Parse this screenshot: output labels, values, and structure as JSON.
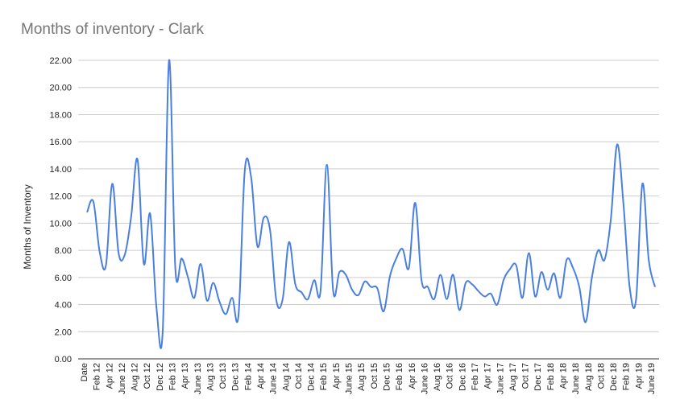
{
  "chart_data": {
    "type": "line",
    "title": "Months of inventory - Clark",
    "xlabel": "",
    "ylabel": "Months of Inventory",
    "ylim": [
      0,
      22
    ],
    "yticks": [
      "0.00",
      "2.00",
      "4.00",
      "6.00",
      "8.00",
      "10.00",
      "12.00",
      "14.00",
      "16.00",
      "18.00",
      "20.00",
      "22.00"
    ],
    "xtick_labels": [
      "Date",
      "Feb 12",
      "Apr 12",
      "June 12",
      "Aug 12",
      "Oct 12",
      "Dec 12",
      "Feb 13",
      "Apr 13",
      "June 13",
      "Aug 13",
      "Oct 13",
      "Dec 13",
      "Feb 14",
      "Apr 14",
      "June 14",
      "Aug 14",
      "Oct 14",
      "Dec 14",
      "Feb 15",
      "Apr 15",
      "June 15",
      "Aug 15",
      "Oct 15",
      "Dec 15",
      "Feb 16",
      "Apr 16",
      "June 16",
      "Aug 16",
      "Oct 16",
      "Dec 16",
      "Feb 17",
      "Apr 17",
      "June 17",
      "Aug 17",
      "Oct 17",
      "Dec 17",
      "Feb 18",
      "Apr 18",
      "June 18",
      "Aug 18",
      "Oct 18",
      "Dec 18",
      "Feb 19",
      "Apr 19",
      "June 19"
    ],
    "grid": true,
    "legend": "none",
    "line_color": "#4a7fe0",
    "series": [
      {
        "values": [
          10.8,
          11.6,
          7.9,
          6.9,
          12.9,
          7.8,
          7.7,
          10.5,
          14.7,
          7.0,
          10.7,
          3.8,
          2.1,
          22.0,
          6.6,
          7.4,
          6.0,
          4.5,
          7.0,
          4.3,
          5.6,
          4.2,
          3.3,
          4.5,
          3.2,
          13.9,
          13.4,
          8.3,
          10.4,
          9.5,
          4.3,
          4.4,
          8.6,
          5.5,
          4.9,
          4.4,
          5.8,
          5.0,
          14.3,
          5.0,
          6.4,
          6.2,
          5.1,
          4.7,
          5.7,
          5.3,
          5.2,
          3.5,
          6.1,
          7.4,
          8.1,
          6.7,
          11.5,
          5.8,
          5.3,
          4.4,
          6.2,
          4.4,
          6.2,
          3.6,
          5.6,
          5.5,
          5.0,
          4.6,
          4.8,
          4.0,
          5.8,
          6.6,
          6.9,
          4.5,
          7.8,
          4.6,
          6.4,
          5.1,
          6.3,
          4.5,
          7.3,
          6.7,
          5.3,
          2.7,
          6.0,
          8.0,
          7.3,
          10.3,
          15.8,
          11.4,
          5.2,
          4.4,
          12.9,
          7.3,
          5.3
        ]
      }
    ]
  }
}
